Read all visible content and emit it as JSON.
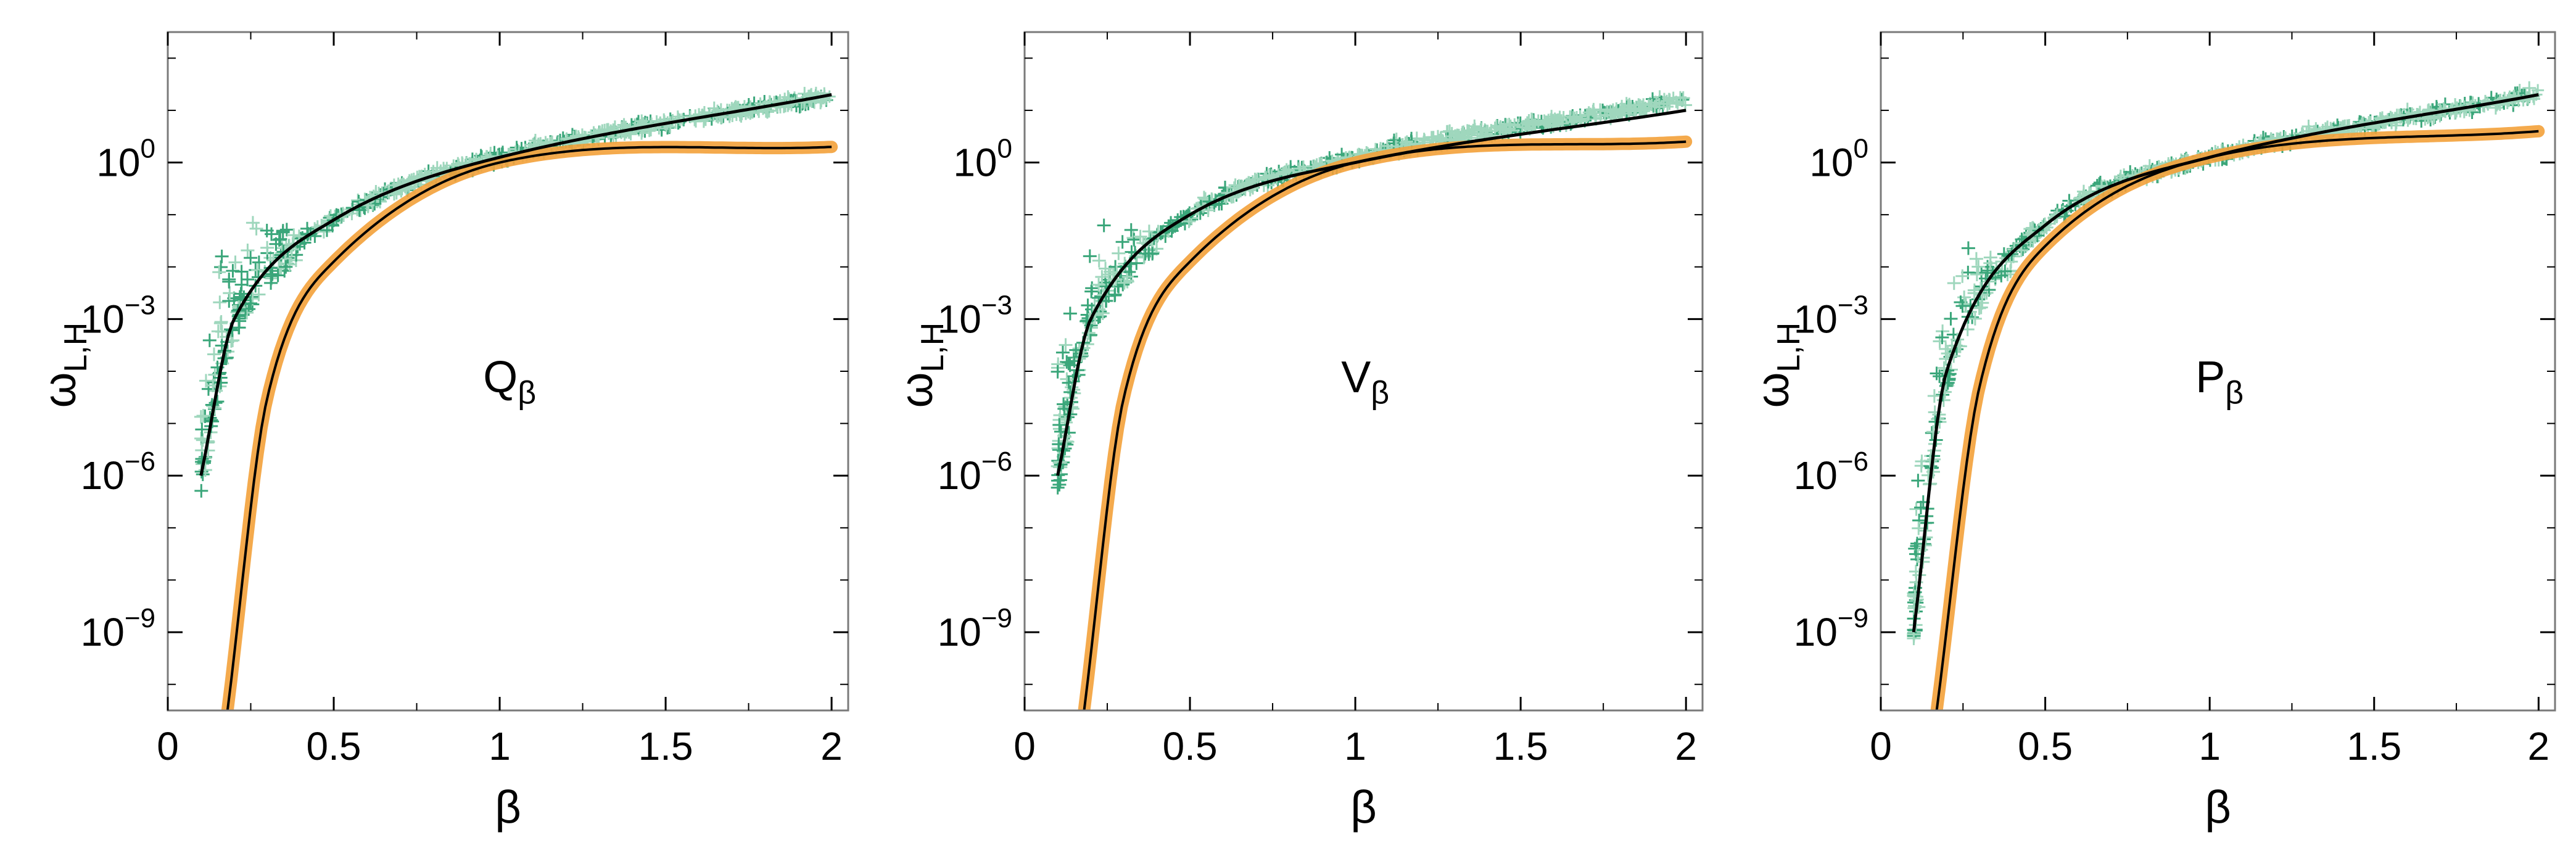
{
  "figure": {
    "background": "#ffffff",
    "colors": {
      "scatter": "#3aa67a",
      "scatter_light": "#9fd7bd",
      "fit_band": "#f3a13a",
      "fit_line": "#000000",
      "frame": "#000000"
    }
  },
  "chart_data": [
    {
      "type": "scatter",
      "panel_label": "Q",
      "panel_label_sub": "β",
      "xlabel": "β",
      "ylabel_main": "ω",
      "ylabel_sub": "L,H",
      "xlim": [
        0,
        2.05
      ],
      "ylim_log10": [
        -10.5,
        2.5
      ],
      "yscale": "log",
      "xticks": [
        "0",
        "0.5",
        "1",
        "1.5",
        "2"
      ],
      "yticks": [
        {
          "base": "10",
          "exp": "0"
        },
        {
          "base": "10",
          "exp": "−3"
        },
        {
          "base": "10",
          "exp": "−6"
        },
        {
          "base": "10",
          "exp": "−9"
        }
      ],
      "ytick_values_log10": [
        0,
        -3,
        -6,
        -9
      ],
      "series": [
        {
          "kind": "scatter-plus",
          "x_range": [
            0.1,
            2.0
          ],
          "y_log10_approx_at": {
            "0.1": -6.0,
            "0.2": -3.0,
            "0.5": -1.1,
            "1.0": 0.1,
            "2.0": 1.3
          }
        },
        {
          "kind": "fit-line-upper",
          "x_range": [
            0.1,
            2.0
          ],
          "y_log10_approx_at": {
            "0.1": -6.0,
            "0.2": -3.0,
            "0.5": -1.1,
            "1.0": 0.1,
            "2.0": 1.3
          }
        },
        {
          "kind": "band-lower",
          "x_range": [
            0.18,
            2.0
          ],
          "y_log10_approx_at": {
            "0.18": -10.5,
            "0.3": -4.5,
            "0.5": -1.9,
            "1.0": 0.0,
            "2.0": 0.3
          }
        }
      ],
      "grid": false
    },
    {
      "type": "scatter",
      "panel_label": "V",
      "panel_label_sub": "β",
      "xlabel": "β",
      "ylabel_main": "ω",
      "ylabel_sub": "L,H",
      "xlim": [
        0,
        2.05
      ],
      "ylim_log10": [
        -10.5,
        2.5
      ],
      "yscale": "log",
      "xticks": [
        "0",
        "0.5",
        "1",
        "1.5",
        "2"
      ],
      "yticks": [
        {
          "base": "10",
          "exp": "0"
        },
        {
          "base": "10",
          "exp": "−3"
        },
        {
          "base": "10",
          "exp": "−6"
        },
        {
          "base": "10",
          "exp": "−9"
        }
      ],
      "ytick_values_log10": [
        0,
        -3,
        -6,
        -9
      ],
      "series": [
        {
          "kind": "scatter-plus",
          "x_range": [
            0.1,
            2.0
          ],
          "y_log10_approx_at": {
            "0.1": -6.0,
            "0.2": -3.0,
            "0.5": -1.0,
            "1.0": 0.1,
            "2.0": 1.2
          }
        },
        {
          "kind": "fit-line-upper",
          "x_range": [
            0.1,
            2.0
          ],
          "y_log10_approx_at": {
            "0.1": -6.0,
            "0.2": -3.0,
            "0.5": -1.0,
            "1.0": 0.0,
            "2.0": 1.0
          }
        },
        {
          "kind": "band-lower",
          "x_range": [
            0.18,
            2.0
          ],
          "y_log10_approx_at": {
            "0.18": -10.5,
            "0.3": -4.5,
            "0.5": -1.9,
            "1.0": 0.0,
            "2.0": 0.4
          }
        }
      ],
      "grid": false
    },
    {
      "type": "scatter",
      "panel_label": "P",
      "panel_label_sub": "β",
      "xlabel": "β",
      "ylabel_main": "ω",
      "ylabel_sub": "L,H",
      "xlim": [
        0,
        2.05
      ],
      "ylim_log10": [
        -10.5,
        2.5
      ],
      "yscale": "log",
      "xticks": [
        "0",
        "0.5",
        "1",
        "1.5",
        "2"
      ],
      "yticks": [
        {
          "base": "10",
          "exp": "0"
        },
        {
          "base": "10",
          "exp": "−3"
        },
        {
          "base": "10",
          "exp": "−6"
        },
        {
          "base": "10",
          "exp": "−9"
        }
      ],
      "ytick_values_log10": [
        0,
        -3,
        -6,
        -9
      ],
      "series": [
        {
          "kind": "scatter-plus",
          "x_range": [
            0.1,
            2.0
          ],
          "y_log10_approx_at": {
            "0.1": -9.0,
            "0.2": -4.0,
            "0.5": -1.2,
            "1.0": 0.1,
            "2.0": 1.3
          }
        },
        {
          "kind": "fit-line-upper",
          "x_range": [
            0.1,
            2.0
          ],
          "y_log10_approx_at": {
            "0.1": -9.0,
            "0.2": -4.0,
            "0.5": -1.2,
            "1.0": 0.1,
            "2.0": 1.3
          }
        },
        {
          "kind": "band-lower",
          "x_range": [
            0.17,
            2.0
          ],
          "y_log10_approx_at": {
            "0.17": -10.5,
            "0.3": -4.3,
            "0.5": -1.6,
            "1.0": 0.1,
            "2.0": 0.6
          }
        }
      ],
      "grid": false
    }
  ]
}
